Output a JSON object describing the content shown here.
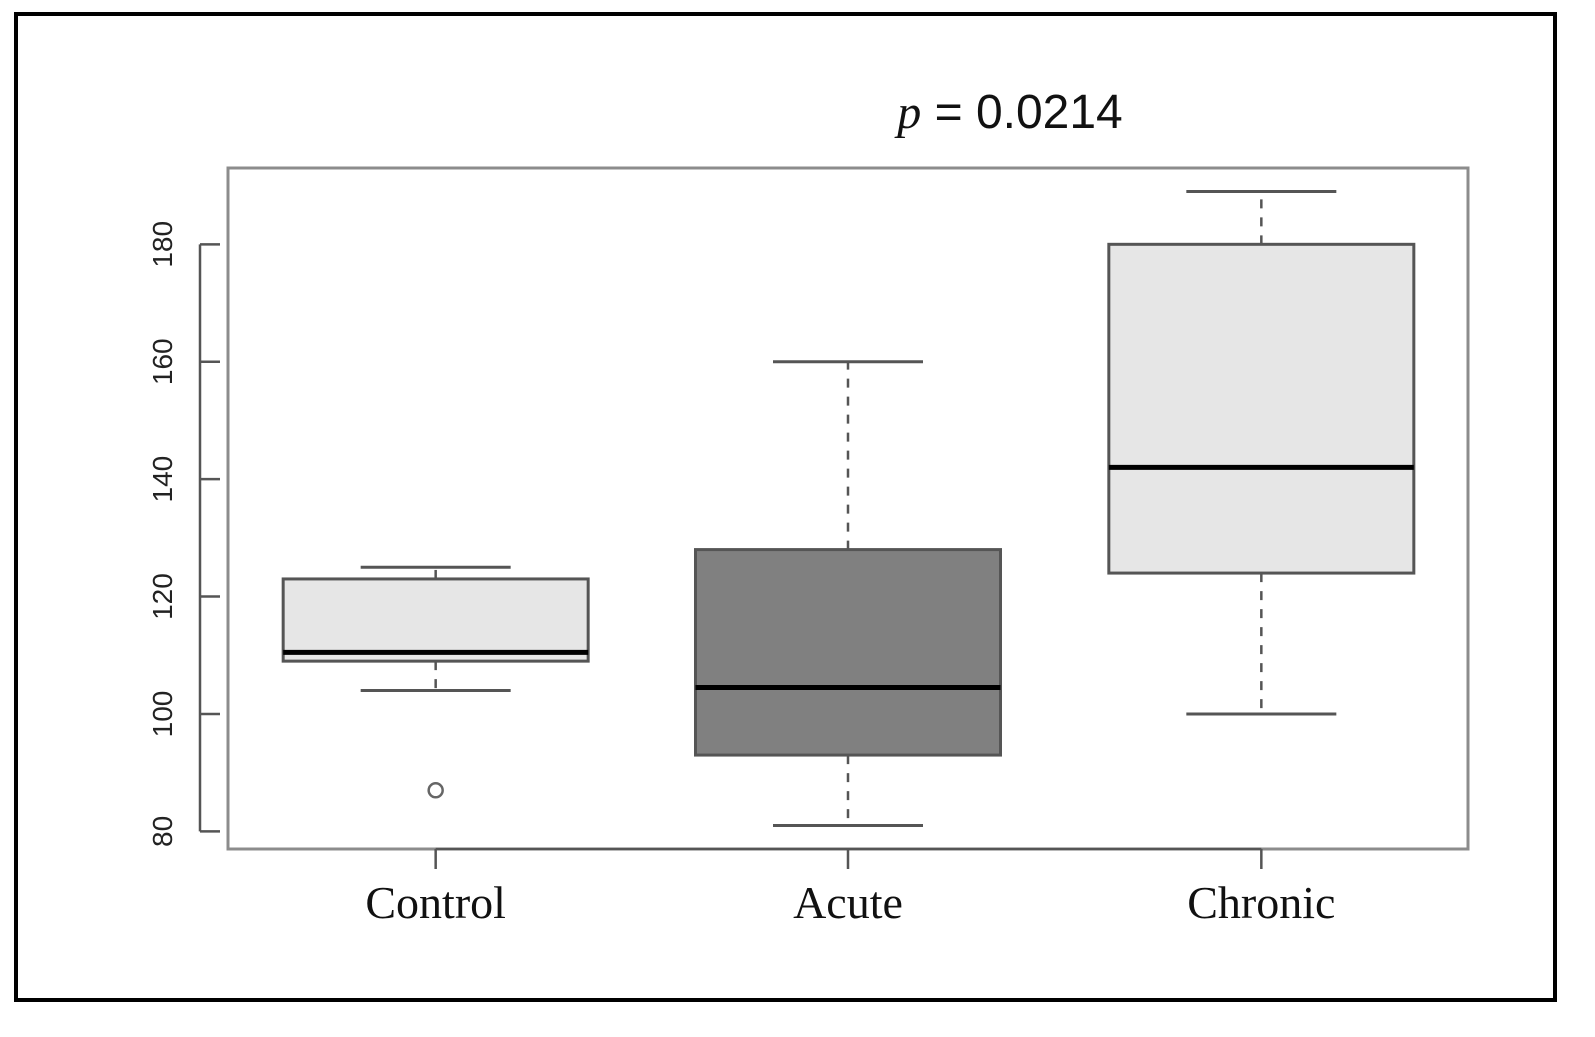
{
  "chart_data": {
    "type": "boxplot",
    "title_var": "p",
    "title_rest": " = 0.0214",
    "categories": [
      "Control",
      "Acute",
      "Chronic"
    ],
    "ylim": [
      77,
      193
    ],
    "yticks": [
      80,
      100,
      120,
      140,
      160,
      180
    ],
    "ytick_labels": [
      "80",
      "100",
      "120",
      "140",
      "160",
      "180"
    ],
    "boxes": [
      {
        "category": "Control",
        "whisker_low": 104,
        "q1": 109,
        "median": 110.5,
        "q3": 123,
        "whisker_high": 125,
        "outliers": [
          87
        ],
        "fill": "#e6e6e6"
      },
      {
        "category": "Acute",
        "whisker_low": 81,
        "q1": 93,
        "median": 104.5,
        "q3": 128,
        "whisker_high": 160,
        "outliers": [],
        "fill": "#808080"
      },
      {
        "category": "Chronic",
        "whisker_low": 100,
        "q1": 124,
        "median": 142,
        "q3": 180,
        "whisker_high": 189,
        "outliers": [],
        "fill": "#e6e6e6"
      }
    ],
    "grid": false,
    "legend": "none"
  }
}
